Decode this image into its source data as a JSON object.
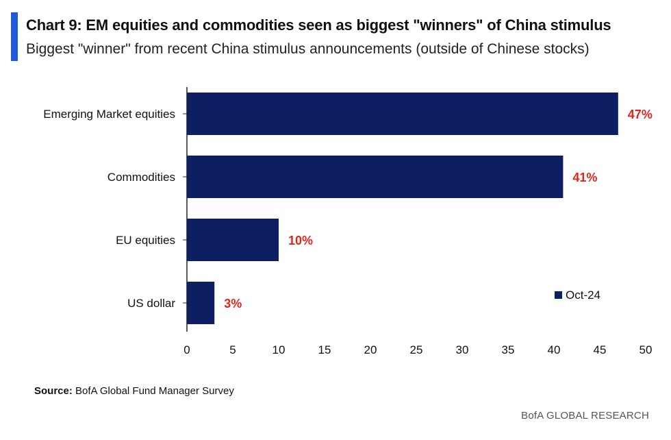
{
  "header": {
    "title": "Chart 9: EM equities and commodities seen as biggest \"winners\" of China stimulus",
    "subtitle": "Biggest \"winner\" from recent China stimulus announcements (outside of Chinese stocks)"
  },
  "chart_data": {
    "type": "bar",
    "orientation": "horizontal",
    "categories": [
      "Emerging Market equities",
      "Commodities",
      "EU equities",
      "US dollar"
    ],
    "series": [
      {
        "name": "Oct-24",
        "values": [
          47,
          41,
          10,
          3
        ],
        "labels": [
          "47%",
          "41%",
          "10%",
          "3%"
        ]
      }
    ],
    "xlim": [
      0,
      50
    ],
    "xticks": [
      0,
      5,
      10,
      15,
      20,
      25,
      30,
      35,
      40,
      45,
      50
    ],
    "xlabel": "",
    "ylabel": "",
    "grid": false,
    "legend": {
      "position": "bottom-right",
      "entries": [
        "Oct-24"
      ]
    }
  },
  "colors": {
    "bar": "#0d1f62",
    "value_label": "#e0261b",
    "axis": "#222222"
  },
  "footer": {
    "source_label": "Source:",
    "source_text": "BofA Global Fund Manager Survey",
    "brand": "BofA GLOBAL RESEARCH"
  }
}
